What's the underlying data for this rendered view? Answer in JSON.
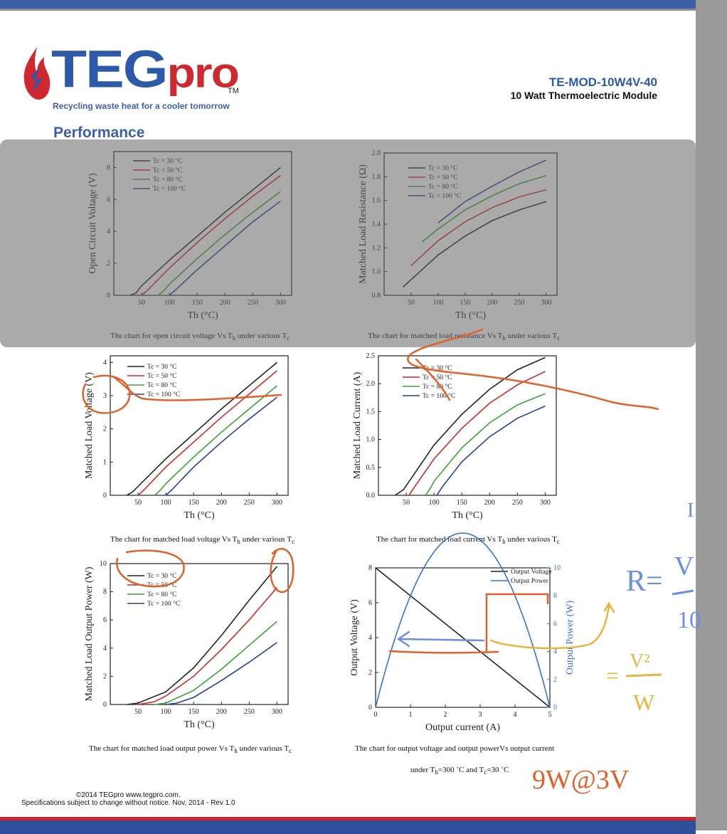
{
  "header": {
    "logo_main": "TEG",
    "logo_pro": "pro",
    "tm": "TM",
    "tagline": "Recycling waste heat for a cooler tomorrow",
    "model": "TE-MOD-10W4V-40",
    "subtitle": "10 Watt Thermoelectric Module",
    "section": "Performance"
  },
  "footer": {
    "line1": "©2014 TEGpro www.tegpro.com.",
    "line2": "Specifications subject to change without notice.  Nov, 2014 - Rev 1.0"
  },
  "handwriting": {
    "formula_r": "R=",
    "formula_v": "V",
    "formula_i": "I",
    "formula_10": "10",
    "formula_eq": "=",
    "formula_v2": "V²",
    "formula_w": "W",
    "note": "9W@3V"
  },
  "colors": {
    "black": "#222222",
    "red": "#d62728",
    "green": "#3aa435",
    "blue": "#2a3f9a",
    "bright_blue": "#3b6fd6",
    "ink_orange": "#e0622a",
    "ink_yellow": "#e9b43c",
    "ink_blue": "#6a8fe0"
  },
  "chart_data": [
    {
      "type": "line",
      "caption": "The chart for open circuit voltage Vs T",
      "caption_sub1": "h",
      "caption_mid": " under various T",
      "caption_sub2": "c",
      "xlabel": "Th (°C)",
      "ylabel": "Open Circuit Voltage (V)",
      "xlim": [
        0,
        320
      ],
      "ylim": [
        0,
        9
      ],
      "xticks": [
        50,
        100,
        150,
        200,
        250,
        300
      ],
      "yticks": [
        0,
        2,
        4,
        6,
        8
      ],
      "legend": [
        "Tc = 30 °C",
        "Tc = 50 °C",
        "Tc = 80 °C",
        "Tc = 100 °C"
      ],
      "series": [
        {
          "name": "Tc = 30 °C",
          "color": "#222222",
          "points": [
            [
              30,
              0
            ],
            [
              40,
              0.15
            ],
            [
              50,
              0.6
            ],
            [
              100,
              2.2
            ],
            [
              150,
              3.7
            ],
            [
              200,
              5.2
            ],
            [
              250,
              6.6
            ],
            [
              300,
              8.0
            ]
          ]
        },
        {
          "name": "Tc = 50 °C",
          "color": "#d62728",
          "points": [
            [
              50,
              0
            ],
            [
              60,
              0.3
            ],
            [
              100,
              1.7
            ],
            [
              150,
              3.3
            ],
            [
              200,
              4.8
            ],
            [
              250,
              6.2
            ],
            [
              300,
              7.5
            ]
          ]
        },
        {
          "name": "Tc = 80 °C",
          "color": "#3aa435",
          "points": [
            [
              80,
              0
            ],
            [
              90,
              0.3
            ],
            [
              100,
              0.7
            ],
            [
              150,
              2.3
            ],
            [
              200,
              3.8
            ],
            [
              250,
              5.2
            ],
            [
              300,
              6.5
            ]
          ]
        },
        {
          "name": "Tc = 100 °C",
          "color": "#2a3f9a",
          "points": [
            [
              100,
              0
            ],
            [
              110,
              0.3
            ],
            [
              150,
              1.6
            ],
            [
              200,
              3.1
            ],
            [
              250,
              4.6
            ],
            [
              300,
              5.9
            ]
          ]
        }
      ]
    },
    {
      "type": "line",
      "caption": "The chart for matched load resistance Vs T",
      "caption_sub1": "h",
      "caption_mid": " under various T",
      "caption_sub2": "c",
      "xlabel": "Th (°C)",
      "ylabel": "Matched Load Resistance (Ω)",
      "xlim": [
        0,
        320
      ],
      "ylim": [
        0.8,
        2.0
      ],
      "xticks": [
        50,
        100,
        150,
        200,
        250,
        300
      ],
      "yticks": [
        0.8,
        1.0,
        1.2,
        1.4,
        1.6,
        1.8,
        2.0
      ],
      "legend": [
        "Tc = 30 °C",
        "Tc = 50 °C",
        "Tc = 80 °C",
        "Tc = 100 °C"
      ],
      "series": [
        {
          "name": "Tc = 30 °C",
          "color": "#222222",
          "points": [
            [
              35,
              0.87
            ],
            [
              100,
              1.14
            ],
            [
              150,
              1.3
            ],
            [
              200,
              1.43
            ],
            [
              250,
              1.52
            ],
            [
              300,
              1.59
            ]
          ]
        },
        {
          "name": "Tc = 50 °C",
          "color": "#d62728",
          "points": [
            [
              50,
              1.05
            ],
            [
              100,
              1.26
            ],
            [
              150,
              1.42
            ],
            [
              200,
              1.54
            ],
            [
              250,
              1.63
            ],
            [
              300,
              1.69
            ]
          ]
        },
        {
          "name": "Tc = 80 °C",
          "color": "#3aa435",
          "points": [
            [
              70,
              1.25
            ],
            [
              100,
              1.36
            ],
            [
              150,
              1.52
            ],
            [
              200,
              1.64
            ],
            [
              250,
              1.74
            ],
            [
              300,
              1.81
            ]
          ]
        },
        {
          "name": "Tc = 100 °C",
          "color": "#2a3f9a",
          "points": [
            [
              100,
              1.41
            ],
            [
              150,
              1.59
            ],
            [
              200,
              1.72
            ],
            [
              250,
              1.84
            ],
            [
              300,
              1.94
            ]
          ]
        }
      ]
    },
    {
      "type": "line",
      "caption": "The chart for matched load voltage Vs T",
      "caption_sub1": "h",
      "caption_mid": " under various T",
      "caption_sub2": "c",
      "xlabel": "Th (°C)",
      "ylabel": "Matched Load Voltage (V)",
      "xlim": [
        0,
        320
      ],
      "ylim": [
        0,
        4.2
      ],
      "xticks": [
        50,
        100,
        150,
        200,
        250,
        300
      ],
      "yticks": [
        0,
        1,
        2,
        3,
        4
      ],
      "legend": [
        "Tc = 30 °C",
        "Tc = 50 °C",
        "Tc = 80 °C",
        "Tc = 100 °C"
      ],
      "series": [
        {
          "name": "Tc = 30 °C",
          "color": "#222222",
          "points": [
            [
              30,
              0
            ],
            [
              40,
              0.1
            ],
            [
              100,
              1.1
            ],
            [
              150,
              1.85
            ],
            [
              200,
              2.6
            ],
            [
              250,
              3.3
            ],
            [
              300,
              4.0
            ]
          ]
        },
        {
          "name": "Tc = 50 °C",
          "color": "#d62728",
          "points": [
            [
              50,
              0
            ],
            [
              60,
              0.15
            ],
            [
              100,
              0.85
            ],
            [
              150,
              1.6
            ],
            [
              200,
              2.35
            ],
            [
              250,
              3.05
            ],
            [
              300,
              3.75
            ]
          ]
        },
        {
          "name": "Tc = 80 °C",
          "color": "#3aa435",
          "points": [
            [
              80,
              0
            ],
            [
              90,
              0.15
            ],
            [
              100,
              0.35
            ],
            [
              150,
              1.15
            ],
            [
              200,
              1.9
            ],
            [
              250,
              2.6
            ],
            [
              300,
              3.3
            ]
          ]
        },
        {
          "name": "Tc = 100 °C",
          "color": "#2a3f9a",
          "points": [
            [
              100,
              0
            ],
            [
              110,
              0.15
            ],
            [
              150,
              0.85
            ],
            [
              200,
              1.6
            ],
            [
              250,
              2.3
            ],
            [
              300,
              2.95
            ]
          ]
        }
      ]
    },
    {
      "type": "line",
      "caption": "The chart for matched load current  Vs T",
      "caption_sub1": "h",
      "caption_mid": " under various T",
      "caption_sub2": "c",
      "xlabel": "Th (°C)",
      "ylabel": "Matched Load Current (A)",
      "xlim": [
        0,
        320
      ],
      "ylim": [
        0,
        2.5
      ],
      "xticks": [
        50,
        100,
        150,
        200,
        250,
        300
      ],
      "yticks": [
        0.0,
        0.5,
        1.0,
        1.5,
        2.0,
        2.5
      ],
      "legend": [
        "Tc = 30 °C",
        "Tc = 50 °C",
        "Tc = 80 °C",
        "Tc = 100 °C"
      ],
      "series": [
        {
          "name": "Tc = 30 °C",
          "color": "#222222",
          "points": [
            [
              30,
              0
            ],
            [
              45,
              0.1
            ],
            [
              100,
              0.9
            ],
            [
              150,
              1.45
            ],
            [
              200,
              1.9
            ],
            [
              250,
              2.25
            ],
            [
              300,
              2.47
            ]
          ]
        },
        {
          "name": "Tc = 50 °C",
          "color": "#d62728",
          "points": [
            [
              55,
              0
            ],
            [
              65,
              0.15
            ],
            [
              100,
              0.65
            ],
            [
              150,
              1.2
            ],
            [
              200,
              1.65
            ],
            [
              250,
              1.98
            ],
            [
              300,
              2.22
            ]
          ]
        },
        {
          "name": "Tc = 80 °C",
          "color": "#3aa435",
          "points": [
            [
              85,
              0
            ],
            [
              95,
              0.15
            ],
            [
              100,
              0.25
            ],
            [
              150,
              0.85
            ],
            [
              200,
              1.3
            ],
            [
              250,
              1.62
            ],
            [
              300,
              1.82
            ]
          ]
        },
        {
          "name": "Tc = 100 °C",
          "color": "#2a3f9a",
          "points": [
            [
              105,
              0
            ],
            [
              115,
              0.15
            ],
            [
              150,
              0.6
            ],
            [
              200,
              1.05
            ],
            [
              250,
              1.38
            ],
            [
              300,
              1.6
            ]
          ]
        }
      ]
    },
    {
      "type": "line",
      "caption": "The chart for matched load output power Vs T",
      "caption_sub1": "h",
      "caption_mid": " under various T",
      "caption_sub2": "c",
      "xlabel": "Th (°C)",
      "ylabel": "Matched Load Output Power (W)",
      "xlim": [
        0,
        320
      ],
      "ylim": [
        0,
        10
      ],
      "xticks": [
        50,
        100,
        150,
        200,
        250,
        300
      ],
      "yticks": [
        0,
        2,
        4,
        6,
        8,
        10
      ],
      "legend": [
        "Tc = 30 °C",
        "Tc = 50 °C",
        "Tc = 80 °C",
        "Tc = 100 °C"
      ],
      "series": [
        {
          "name": "Tc = 30 °C",
          "color": "#222222",
          "points": [
            [
              30,
              0
            ],
            [
              50,
              0.1
            ],
            [
              100,
              0.9
            ],
            [
              150,
              2.6
            ],
            [
              200,
              4.9
            ],
            [
              250,
              7.4
            ],
            [
              300,
              9.8
            ]
          ]
        },
        {
          "name": "Tc = 50 °C",
          "color": "#d62728",
          "points": [
            [
              50,
              0
            ],
            [
              80,
              0.2
            ],
            [
              100,
              0.6
            ],
            [
              150,
              2.0
            ],
            [
              200,
              3.9
            ],
            [
              250,
              6.0
            ],
            [
              300,
              8.3
            ]
          ]
        },
        {
          "name": "Tc = 80 °C",
          "color": "#3aa435",
          "points": [
            [
              80,
              0
            ],
            [
              100,
              0.1
            ],
            [
              150,
              1.0
            ],
            [
              200,
              2.5
            ],
            [
              250,
              4.2
            ],
            [
              300,
              5.9
            ]
          ]
        },
        {
          "name": "Tc = 100 °C",
          "color": "#2a3f9a",
          "points": [
            [
              100,
              0
            ],
            [
              120,
              0.1
            ],
            [
              150,
              0.5
            ],
            [
              200,
              1.7
            ],
            [
              250,
              3.0
            ],
            [
              300,
              4.4
            ]
          ]
        }
      ]
    },
    {
      "type": "line",
      "caption": "The chart for output voltage and output powerVs output current",
      "caption2": "under T",
      "caption2_sub1": "h",
      "caption2_mid": "=300 ˚C  and T",
      "caption2_sub2": "c",
      "caption2_end": "=30 ˚C",
      "xlabel": "Output current (A)",
      "ylabel": "Output Voltage (V)",
      "ylabel2": "Output Power (W)",
      "xlim": [
        0,
        5
      ],
      "ylim": [
        0,
        8
      ],
      "y2lim": [
        0,
        10
      ],
      "xticks": [
        0,
        1,
        2,
        3,
        4,
        5
      ],
      "yticks": [
        0,
        2,
        4,
        6,
        8
      ],
      "y2ticks": [
        0,
        2,
        4,
        6,
        8,
        10
      ],
      "legend": [
        "Output Voltage",
        "Output Power"
      ],
      "series": [
        {
          "name": "Output Voltage",
          "color": "#222222",
          "axis": "left",
          "points": [
            [
              0,
              8
            ],
            [
              5,
              0
            ]
          ]
        },
        {
          "name": "Output Power",
          "color": "#3b6fd6",
          "axis": "right",
          "points": [
            [
              0,
              0
            ],
            [
              0.5,
              3.6
            ],
            [
              1,
              6.4
            ],
            [
              1.5,
              8.4
            ],
            [
              2,
              9.6
            ],
            [
              2.5,
              10
            ],
            [
              3,
              9.6
            ],
            [
              3.5,
              8.4
            ],
            [
              4,
              6.4
            ],
            [
              4.5,
              3.6
            ],
            [
              5,
              0
            ]
          ]
        }
      ]
    }
  ]
}
